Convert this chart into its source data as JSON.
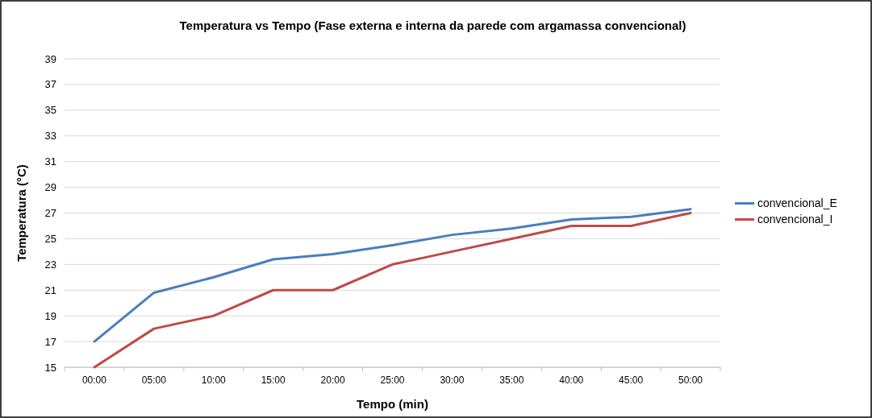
{
  "chart_data": {
    "type": "line",
    "title": "Temperatura vs Tempo (Fase externa e interna da parede com argamassa convencional)",
    "xlabel": "Tempo (min)",
    "ylabel": "Temperatura (°C)",
    "categories": [
      "00:00",
      "05:00",
      "10:00",
      "15:00",
      "20:00",
      "25:00",
      "30:00",
      "35:00",
      "40:00",
      "45:00",
      "50:00"
    ],
    "series": [
      {
        "name": "convencional_E",
        "color": "#4a7ebb",
        "values": [
          17,
          20.8,
          22,
          23.4,
          23.8,
          24.5,
          25.3,
          25.8,
          26.5,
          26.7,
          27.3
        ]
      },
      {
        "name": "convencional_I",
        "color": "#be4b48",
        "values": [
          15,
          18,
          19,
          21,
          21,
          23,
          24,
          25,
          26,
          26,
          27
        ]
      }
    ],
    "ylim": [
      15,
      39
    ],
    "yticks": [
      15,
      17,
      19,
      21,
      23,
      25,
      27,
      29,
      31,
      33,
      35,
      37,
      39
    ],
    "grid": "y",
    "legend": "right",
    "marker": "none",
    "line_style": "solid"
  }
}
